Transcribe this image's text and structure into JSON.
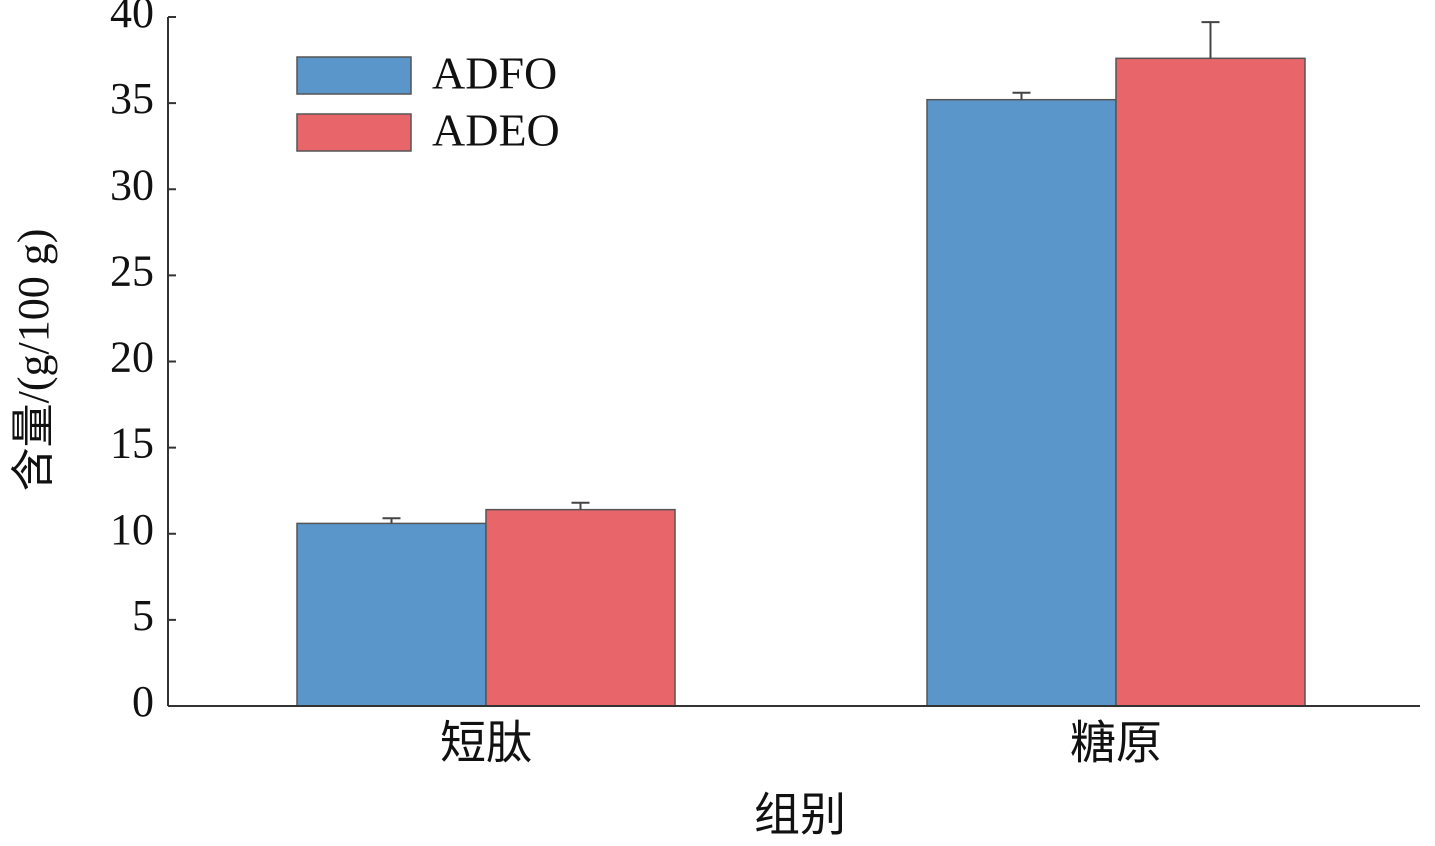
{
  "chart_data": {
    "type": "bar",
    "xlabel": "组别",
    "ylabel": "含量/(g/100 g)",
    "categories": [
      "短肽",
      "糖原"
    ],
    "series": [
      {
        "name": "ADFO",
        "color": "#5b96cb",
        "values": [
          10.6,
          35.2
        ],
        "error": [
          0.3,
          0.4
        ]
      },
      {
        "name": "ADEO",
        "color": "#e8666a",
        "values": [
          11.4,
          37.6
        ],
        "error": [
          0.4,
          2.1
        ]
      }
    ],
    "ylim": [
      0,
      40
    ],
    "yticks": [
      0,
      5,
      10,
      15,
      20,
      25,
      30,
      35,
      40
    ],
    "legend": "upper-left"
  }
}
